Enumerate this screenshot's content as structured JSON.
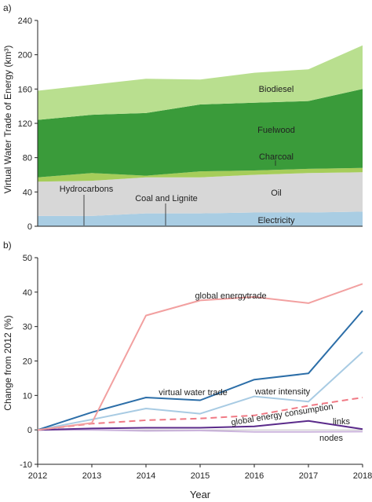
{
  "figure": {
    "charts": [
      {
        "type": "area",
        "panel_label": "a)",
        "ylabel": "Virtual Water Trade of Energy (km³)",
        "xlabel": "",
        "ylim": [
          0,
          240
        ],
        "yticks": [
          0,
          40,
          80,
          120,
          160,
          200,
          240
        ],
        "x": [
          2012,
          2013,
          2014,
          2015,
          2016,
          2017,
          2018
        ],
        "stacked": true,
        "series": [
          {
            "name": "Electricity",
            "values": [
              12,
              12,
              15,
              15,
              16,
              16,
              17
            ],
            "color": "#a9cde3"
          },
          {
            "name": "Coal and Lignite",
            "values": [
              0,
              0,
              0,
              0,
              0,
              0,
              0
            ],
            "color": "#cfcfcf"
          },
          {
            "name": "Oil",
            "values": [
              40,
              41,
              42,
              42,
              44,
              46,
              46
            ],
            "color": "#d7d7d7"
          },
          {
            "name": "Hydrocarbons",
            "values": [
              0,
              0,
              0,
              0,
              0,
              0,
              0
            ],
            "color": "#d7d7d7"
          },
          {
            "name": "Charcoal",
            "values": [
              5,
              9,
              2,
              7,
              5,
              5,
              5
            ],
            "color": "#a6cd5a"
          },
          {
            "name": "Fuelwood",
            "values": [
              67,
              68,
              73,
              78,
              79,
              79,
              92
            ],
            "color": "#3a9b3a"
          },
          {
            "name": "Biodiesel",
            "values": [
              34,
              35,
              40,
              29,
              35,
              37,
              51
            ],
            "color": "#b9df8f"
          }
        ],
        "labels": [
          "Biodiesel",
          "Fuelwood",
          "Charcoal",
          "Oil",
          "Hydrocarbons",
          "Coal and Lignite",
          "Electricity"
        ]
      },
      {
        "type": "line",
        "panel_label": "b)",
        "ylabel": "Change from 2012 (%)",
        "xlabel": "Year",
        "ylim": [
          -10,
          50
        ],
        "yticks": [
          -10,
          0,
          10,
          20,
          30,
          40,
          50
        ],
        "xticks": [
          2012,
          2013,
          2014,
          2015,
          2016,
          2017,
          2018
        ],
        "x": [
          2012,
          2013,
          2014,
          2015,
          2016,
          2017,
          2018
        ],
        "series": [
          {
            "name": "global energytrade",
            "values": [
              0,
              2,
              33.2,
              37.6,
              38.6,
              36.8,
              42.4
            ],
            "color": "#f2a0a0",
            "dash": false
          },
          {
            "name": "virtual water trade",
            "values": [
              0,
              5.1,
              9.4,
              8.6,
              14.6,
              16.4,
              34.6
            ],
            "color": "#2c6ea8",
            "dash": false
          },
          {
            "name": "water intensity",
            "values": [
              0,
              3.0,
              6.2,
              4.7,
              9.7,
              8.2,
              22.6
            ],
            "color": "#a8cbe3",
            "dash": false
          },
          {
            "name": "global energy consumption",
            "values": [
              0,
              1.8,
              2.8,
              3.3,
              4.2,
              7.0,
              9.4
            ],
            "color": "#f07a85",
            "dash": true
          },
          {
            "name": "links",
            "values": [
              0,
              0.4,
              0.6,
              0.6,
              1.0,
              2.6,
              0.2
            ],
            "color": "#5a2a8a",
            "dash": false
          },
          {
            "name": "nodes",
            "values": [
              0,
              0,
              -0.3,
              -0.2,
              -0.6,
              -0.6,
              -0.5
            ],
            "color": "#cbb4dc",
            "dash": false
          }
        ]
      }
    ]
  }
}
